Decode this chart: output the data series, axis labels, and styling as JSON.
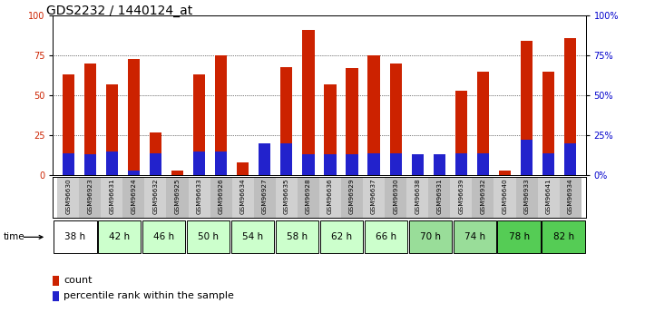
{
  "title": "GDS2232 / 1440124_at",
  "samples": [
    "GSM96630",
    "GSM96923",
    "GSM96631",
    "GSM96924",
    "GSM96632",
    "GSM96925",
    "GSM96633",
    "GSM96926",
    "GSM96634",
    "GSM96927",
    "GSM96635",
    "GSM96928",
    "GSM96636",
    "GSM96929",
    "GSM96637",
    "GSM96930",
    "GSM96638",
    "GSM96931",
    "GSM96639",
    "GSM96932",
    "GSM96640",
    "GSM96933",
    "GSM96641",
    "GSM96934"
  ],
  "count_values": [
    63,
    70,
    57,
    73,
    27,
    3,
    63,
    75,
    8,
    12,
    68,
    91,
    57,
    67,
    75,
    70,
    7,
    10,
    53,
    65,
    3,
    84,
    65,
    86
  ],
  "percentile_values": [
    14,
    13,
    15,
    3,
    14,
    0,
    15,
    15,
    0,
    20,
    20,
    13,
    13,
    13,
    14,
    14,
    13,
    13,
    14,
    14,
    0,
    22,
    14,
    20
  ],
  "time_labels": [
    "38 h",
    "42 h",
    "46 h",
    "50 h",
    "54 h",
    "58 h",
    "62 h",
    "66 h",
    "70 h",
    "74 h",
    "78 h",
    "82 h"
  ],
  "time_bg_colors": [
    "#ffffff",
    "#ccffcc",
    "#ccffcc",
    "#ccffcc",
    "#ccffcc",
    "#ccffcc",
    "#ccffcc",
    "#ccffcc",
    "#99dd99",
    "#99dd99",
    "#55cc55",
    "#55cc55"
  ],
  "bar_color_red": "#cc2200",
  "bar_color_blue": "#2222cc",
  "bar_width": 0.55,
  "ylim": [
    0,
    100
  ],
  "yticks": [
    0,
    25,
    50,
    75,
    100
  ],
  "xlabel_color": "#cc2200",
  "ylabel_right_color": "#0000cc",
  "title_fontsize": 10,
  "tick_fontsize": 7,
  "legend_fontsize": 8,
  "sample_col_even": "#d0d0d0",
  "sample_col_odd": "#bebebe"
}
